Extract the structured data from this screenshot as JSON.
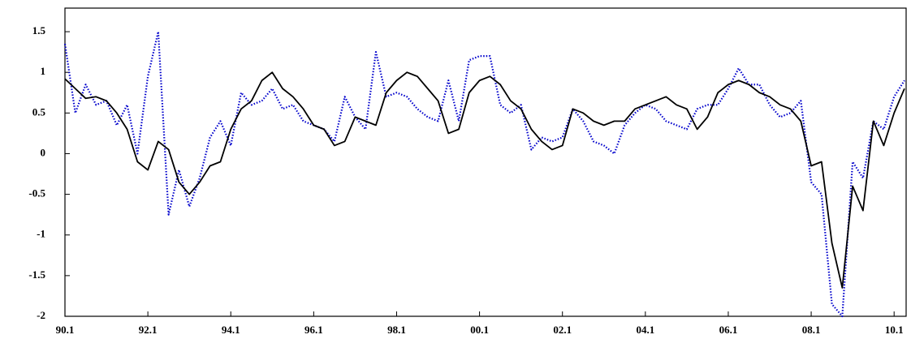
{
  "chart_data": {
    "type": "line",
    "x": [
      1990,
      1990.25,
      1990.5,
      1990.75,
      1991,
      1991.25,
      1991.5,
      1991.75,
      1992,
      1992.25,
      1992.5,
      1992.75,
      1993,
      1993.25,
      1993.5,
      1993.75,
      1994,
      1994.25,
      1994.5,
      1994.75,
      1995,
      1995.25,
      1995.5,
      1995.75,
      1996,
      1996.25,
      1996.5,
      1996.75,
      1997,
      1997.25,
      1997.5,
      1997.75,
      1998,
      1998.25,
      1998.5,
      1998.75,
      1999,
      1999.25,
      1999.5,
      1999.75,
      2000,
      2000.25,
      2000.5,
      2000.75,
      2001,
      2001.25,
      2001.5,
      2001.75,
      2002,
      2002.25,
      2002.5,
      2002.75,
      2003,
      2003.25,
      2003.5,
      2003.75,
      2004,
      2004.25,
      2004.5,
      2004.75,
      2005,
      2005.25,
      2005.5,
      2005.75,
      2006,
      2006.25,
      2006.5,
      2006.75,
      2007,
      2007.25,
      2007.5,
      2007.75,
      2008,
      2008.25,
      2008.5,
      2008.75,
      2009,
      2009.25,
      2009.5,
      2009.75,
      2010,
      2010.25
    ],
    "series": [
      {
        "color": "#000000",
        "style": "solid",
        "values": [
          0.92,
          0.8,
          0.68,
          0.7,
          0.65,
          0.5,
          0.3,
          -0.1,
          -0.2,
          0.15,
          0.05,
          -0.35,
          -0.5,
          -0.35,
          -0.15,
          -0.1,
          0.3,
          0.55,
          0.65,
          0.9,
          1.0,
          0.8,
          0.7,
          0.55,
          0.35,
          0.3,
          0.1,
          0.15,
          0.45,
          0.4,
          0.35,
          0.75,
          0.9,
          1.0,
          0.95,
          0.8,
          0.65,
          0.25,
          0.3,
          0.75,
          0.9,
          0.95,
          0.85,
          0.65,
          0.55,
          0.3,
          0.15,
          0.05,
          0.1,
          0.55,
          0.5,
          0.4,
          0.35,
          0.4,
          0.4,
          0.55,
          0.6,
          0.65,
          0.7,
          0.6,
          0.55,
          0.3,
          0.45,
          0.75,
          0.85,
          0.9,
          0.85,
          0.75,
          0.7,
          0.6,
          0.55,
          0.4,
          -0.15,
          -0.1,
          -1.1,
          -1.65,
          -0.4,
          -0.7,
          0.4,
          0.1,
          0.5,
          0.8
        ]
      },
      {
        "color": "#0000cc",
        "style": "dotted",
        "values": [
          1.35,
          0.5,
          0.85,
          0.6,
          0.65,
          0.35,
          0.6,
          0.0,
          0.95,
          1.5,
          -0.75,
          -0.2,
          -0.65,
          -0.3,
          0.2,
          0.4,
          0.1,
          0.75,
          0.6,
          0.65,
          0.8,
          0.55,
          0.6,
          0.4,
          0.35,
          0.3,
          0.15,
          0.7,
          0.45,
          0.3,
          1.25,
          0.7,
          0.75,
          0.7,
          0.55,
          0.45,
          0.4,
          0.9,
          0.4,
          1.15,
          1.2,
          1.2,
          0.6,
          0.5,
          0.6,
          0.05,
          0.2,
          0.15,
          0.2,
          0.55,
          0.4,
          0.15,
          0.1,
          0.0,
          0.35,
          0.5,
          0.6,
          0.55,
          0.4,
          0.35,
          0.3,
          0.55,
          0.6,
          0.6,
          0.8,
          1.05,
          0.85,
          0.85,
          0.6,
          0.45,
          0.5,
          0.65,
          -0.35,
          -0.5,
          -1.85,
          -2.0,
          -0.1,
          -0.3,
          0.4,
          0.3,
          0.7,
          0.9
        ]
      }
    ],
    "xlim": [
      1990,
      2010.29
    ],
    "ylim": [
      -2,
      1.79
    ],
    "xticks": [
      {
        "value": 1990,
        "label": "90.1"
      },
      {
        "value": 1992,
        "label": "92.1"
      },
      {
        "value": 1994,
        "label": "94.1"
      },
      {
        "value": 1996,
        "label": "96.1"
      },
      {
        "value": 1998,
        "label": "98.1"
      },
      {
        "value": 2000,
        "label": "00.1"
      },
      {
        "value": 2002,
        "label": "02.1"
      },
      {
        "value": 2004,
        "label": "04.1"
      },
      {
        "value": 2006,
        "label": "06.1"
      },
      {
        "value": 2008,
        "label": "08.1"
      },
      {
        "value": 2010,
        "label": "10.1"
      }
    ],
    "yticks": [
      -2,
      -1.5,
      -1,
      -0.5,
      0,
      0.5,
      1,
      1.5
    ],
    "grid": false
  }
}
